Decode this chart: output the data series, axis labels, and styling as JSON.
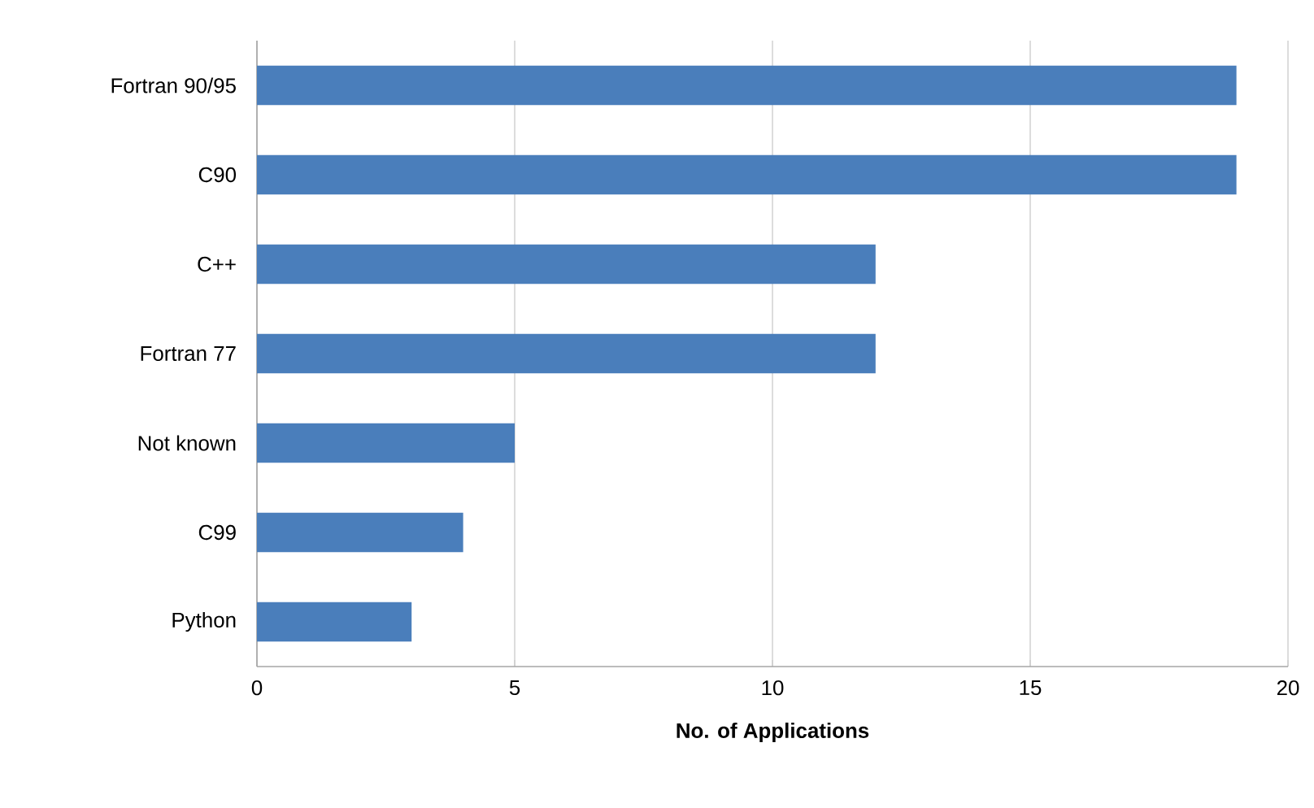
{
  "chart_data": {
    "type": "bar",
    "orientation": "horizontal",
    "xlabel": "No. of Applications",
    "categories": [
      "Fortran 90/95",
      "C90",
      "C++",
      "Fortran 77",
      "Not known",
      "C99",
      "Python"
    ],
    "values": [
      19,
      19,
      12,
      12,
      5,
      4,
      3
    ],
    "color": "#4a7ebb",
    "xlim": [
      0,
      20
    ],
    "xticks": [
      0,
      5,
      10,
      15,
      20
    ],
    "grid": "x"
  }
}
